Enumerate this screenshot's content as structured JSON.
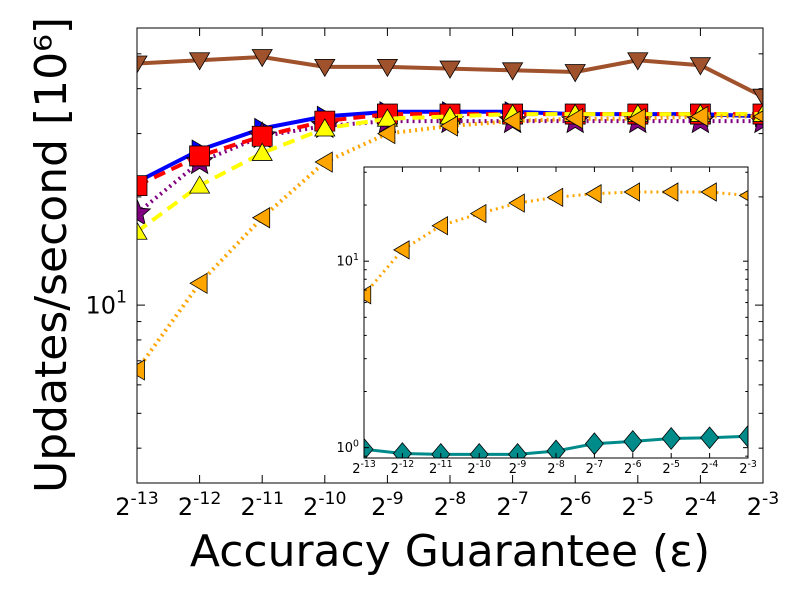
{
  "chart_data": [
    {
      "type": "line",
      "ylabel": "Updates/second [10⁶]",
      "xlabel": "Accuracy Guarantee (ε)",
      "yscale": "log",
      "xscale": "log2",
      "ylim": [
        3.2,
        59
      ],
      "x": [
        -13,
        -12,
        -11,
        -10,
        -9,
        -8,
        -7,
        -6,
        -5,
        -4,
        -3
      ],
      "x_tick_labels": [
        "2^-13",
        "2^-12",
        "2^-11",
        "2^-10",
        "2^-9",
        "2^-8",
        "2^-7",
        "2^-6",
        "2^-5",
        "2^-4",
        "2^-3"
      ],
      "y_tick_labels": [
        {
          "value": 10,
          "label": "10^1"
        }
      ],
      "grid": false,
      "series": [
        {
          "color": "#a0522d",
          "marker": "triangle-down",
          "style": "solid",
          "values": [
            47,
            48,
            49,
            46,
            46,
            45.5,
            45,
            44.5,
            48,
            46.5,
            38
          ]
        },
        {
          "color": "#0000ff",
          "marker": "triangle-right",
          "style": "solid",
          "values": [
            22,
            27,
            31,
            33.5,
            34.5,
            34.5,
            34.5,
            34,
            34,
            34,
            33.5
          ]
        },
        {
          "color": "#800080",
          "marker": "star",
          "style": "dotted",
          "values": [
            18,
            25,
            29.5,
            31.5,
            32.5,
            32.5,
            32.5,
            32.5,
            32.5,
            32.5,
            32.5
          ]
        },
        {
          "color": "#ff0000",
          "marker": "square",
          "style": "dashed",
          "values": [
            21.5,
            26,
            29.5,
            32.5,
            34,
            34,
            34,
            34,
            34,
            34,
            34
          ]
        },
        {
          "color": "#ffff00",
          "marker": "triangle-up",
          "style": "dashed",
          "values": [
            16,
            21.5,
            26.5,
            31,
            33,
            33.5,
            34,
            34,
            34,
            34,
            34
          ]
        },
        {
          "color": "#ffa500",
          "marker": "triangle-left",
          "style": "dotted",
          "values": [
            6.6,
            11.5,
            17.5,
            25,
            30,
            31.5,
            32.5,
            33,
            33,
            33.5,
            33.5
          ]
        }
      ]
    },
    {
      "type": "line",
      "inset": true,
      "yscale": "log",
      "ylim": [
        0.88,
        32
      ],
      "x": [
        -13,
        -12,
        -11,
        -10,
        -9,
        -8,
        -7,
        -6,
        -5,
        -4,
        -3
      ],
      "x_tick_labels": [
        "2^-13",
        "2^-12",
        "2^-11",
        "2^-10",
        "2^-9",
        "2^-8",
        "2^-7",
        "2^-6",
        "2^-5",
        "2^-4",
        "2^-3"
      ],
      "y_tick_labels": [
        {
          "value": 1,
          "label": "10^0"
        },
        {
          "value": 10,
          "label": "10^1"
        }
      ],
      "series": [
        {
          "color": "#ffa500",
          "marker": "triangle-left",
          "style": "dotted",
          "values": [
            6.6,
            11.5,
            15.5,
            18,
            20.5,
            22,
            23,
            23.5,
            23.5,
            23.5,
            22.5
          ]
        },
        {
          "color": "#008b8b",
          "marker": "diamond",
          "style": "solid",
          "values": [
            0.98,
            0.93,
            0.92,
            0.92,
            0.92,
            0.96,
            1.05,
            1.08,
            1.12,
            1.13,
            1.15
          ]
        }
      ]
    }
  ]
}
